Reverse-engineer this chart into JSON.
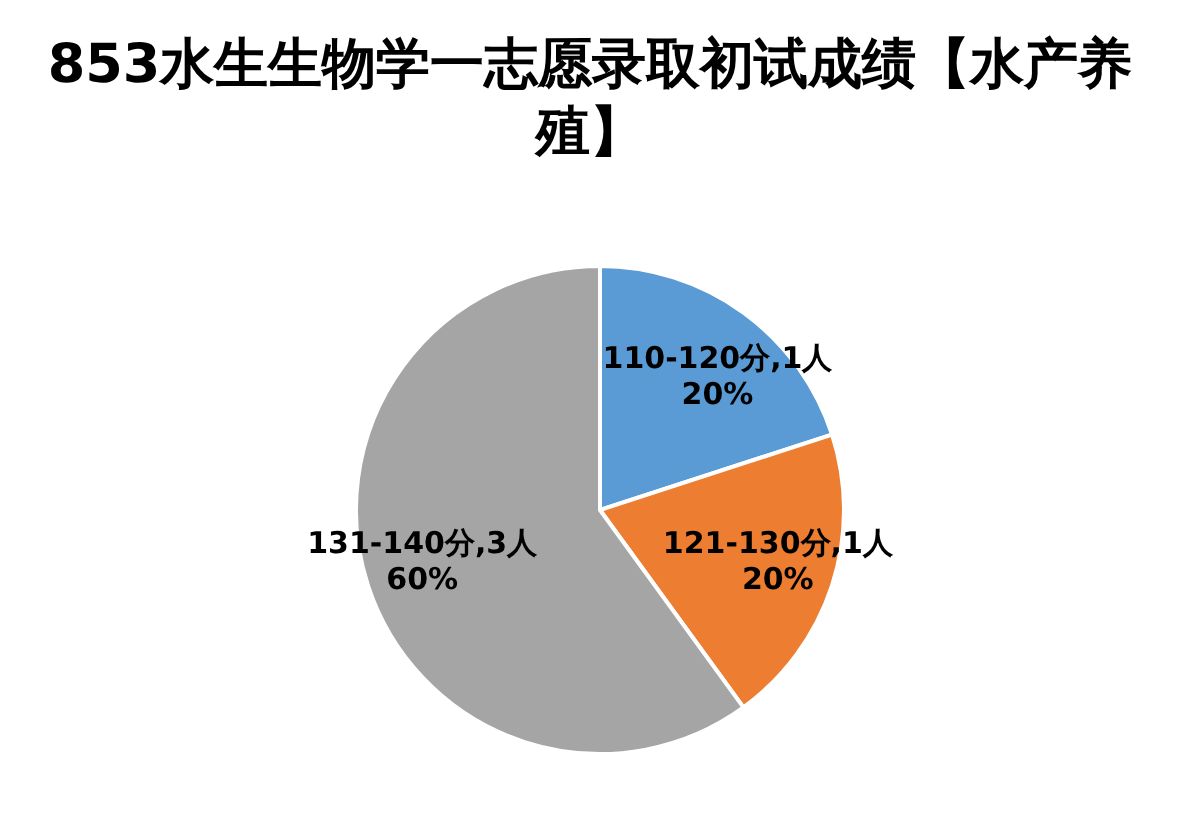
{
  "chart_data": {
    "type": "pie",
    "title": "853水生生物学一志愿录取初试成绩【水产养殖】",
    "categories": [
      "110-120分",
      "121-130分",
      "131-140分"
    ],
    "values": [
      1,
      1,
      3
    ],
    "colors": [
      "#5b9bd5",
      "#ed7d31",
      "#a5a5a5"
    ],
    "value_labels": [
      "1人\n20%",
      "1人\n20%",
      "3人\n60%"
    ],
    "legend": false
  }
}
